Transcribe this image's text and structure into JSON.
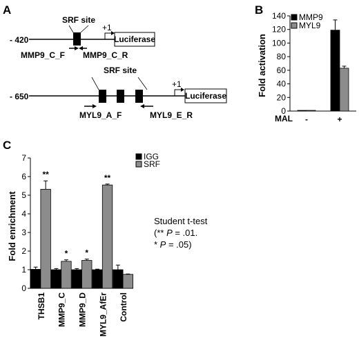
{
  "panels": {
    "a": "A",
    "b": "B",
    "c": "C"
  },
  "constructs": {
    "mmp9": {
      "position": "- 420",
      "site": "SRF site",
      "tss": "+1",
      "reporter": "Luciferase",
      "primer_f": "MMP9_C_F",
      "primer_r": "MMP9_C_R"
    },
    "myl9": {
      "position": "- 650",
      "site": "SRF site",
      "tss": "+1",
      "reporter": "Luciferase",
      "primer_f": "MYL9_A_F",
      "primer_r": "MYL9_E_R"
    }
  },
  "colors": {
    "black_series": "#000000",
    "gray_series": "#8c8c8c"
  },
  "chart_data": [
    {
      "type": "bar",
      "ylabel": "Fold activation",
      "xlabel": "MAL",
      "categories": [
        "-",
        "+"
      ],
      "ylim": [
        0,
        140
      ],
      "yticks": [
        0,
        20,
        40,
        60,
        80,
        100,
        120,
        140
      ],
      "legend_position": "top-left",
      "series": [
        {
          "name": "MMP9",
          "color": "#000000",
          "values": [
            1,
            119
          ],
          "errors": [
            0,
            15
          ]
        },
        {
          "name": "MYL9",
          "color": "#8c8c8c",
          "values": [
            1,
            63
          ],
          "errors": [
            0,
            3
          ]
        }
      ]
    },
    {
      "type": "bar",
      "ylabel": "Fold enrichment",
      "categories": [
        "THSB1",
        "MMP9_C",
        "MMP9_D",
        "MYL9_AfEr",
        "Control"
      ],
      "ylim": [
        0,
        7
      ],
      "yticks": [
        0,
        1,
        2,
        3,
        4,
        5,
        6,
        7
      ],
      "legend_position": "top-right",
      "series": [
        {
          "name": "IGG",
          "color": "#000000",
          "values": [
            1.02,
            1.0,
            1.0,
            1.0,
            1.0
          ],
          "errors": [
            0.12,
            0.06,
            0.06,
            0.03,
            0.25
          ]
        },
        {
          "name": "SRF",
          "color": "#8c8c8c",
          "values": [
            5.32,
            1.45,
            1.5,
            5.55,
            0.75
          ],
          "errors": [
            0.45,
            0.08,
            0.07,
            0.05,
            0.02
          ]
        }
      ],
      "significance": [
        "**",
        "*",
        "*",
        "**",
        ""
      ],
      "annotation": {
        "line1": "Student t-test",
        "line2_prefix": "(** ",
        "line2_p": "P",
        "line2_suffix": " = .01.",
        "line3_prefix": "* ",
        "line3_p": "P",
        "line3_suffix": " = .05)"
      }
    }
  ]
}
